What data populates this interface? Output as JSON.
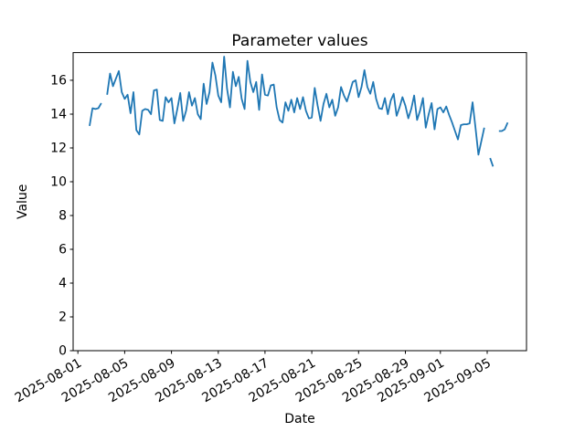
{
  "figure": {
    "background": "#ffffff",
    "aria_label": "Parameter values line chart"
  },
  "chart_data": {
    "type": "line",
    "title": "Parameter values",
    "xlabel": "Date",
    "ylabel": "Value",
    "line_color": "#1f77b4",
    "axis_color": "#000000",
    "grid": false,
    "legend": "none",
    "ylim": [
      0,
      17.64
    ],
    "yticks": [
      0,
      2,
      4,
      6,
      8,
      10,
      12,
      14,
      16
    ],
    "xlim_days_from_aug1": [
      -0.41,
      38.36
    ],
    "xticks": [
      {
        "label": "2025-08-01",
        "day": 0
      },
      {
        "label": "2025-08-05",
        "day": 4
      },
      {
        "label": "2025-08-09",
        "day": 8
      },
      {
        "label": "2025-08-13",
        "day": 12
      },
      {
        "label": "2025-08-17",
        "day": 16
      },
      {
        "label": "2025-08-21",
        "day": 20
      },
      {
        "label": "2025-08-25",
        "day": 24
      },
      {
        "label": "2025-08-29",
        "day": 28
      },
      {
        "label": "2025-09-01",
        "day": 31
      },
      {
        "label": "2025-09-05",
        "day": 35
      }
    ],
    "points": [
      [
        "2025-08-02T00:00",
        13.3
      ],
      [
        "2025-08-02T06:00",
        14.35
      ],
      [
        "2025-08-02T12:00",
        14.3
      ],
      [
        "2025-08-02T18:00",
        14.35
      ],
      [
        "2025-08-03T00:00",
        14.65
      ],
      [
        "2025-08-03T06:00",
        null
      ],
      [
        "2025-08-03T12:00",
        15.15
      ],
      [
        "2025-08-03T18:00",
        16.4
      ],
      [
        "2025-08-04T00:00",
        15.65
      ],
      [
        "2025-08-04T06:00",
        16.1
      ],
      [
        "2025-08-04T12:00",
        16.55
      ],
      [
        "2025-08-04T18:00",
        15.3
      ],
      [
        "2025-08-05T00:00",
        14.9
      ],
      [
        "2025-08-05T06:00",
        15.15
      ],
      [
        "2025-08-05T12:00",
        14.05
      ],
      [
        "2025-08-05T18:00",
        15.3
      ],
      [
        "2025-08-06T00:00",
        13.05
      ],
      [
        "2025-08-06T06:00",
        12.8
      ],
      [
        "2025-08-06T12:00",
        14.2
      ],
      [
        "2025-08-06T18:00",
        14.3
      ],
      [
        "2025-08-07T00:00",
        14.25
      ],
      [
        "2025-08-07T06:00",
        14.0
      ],
      [
        "2025-08-07T12:00",
        15.4
      ],
      [
        "2025-08-07T18:00",
        15.45
      ],
      [
        "2025-08-08T00:00",
        13.65
      ],
      [
        "2025-08-08T06:00",
        13.6
      ],
      [
        "2025-08-08T12:00",
        15.0
      ],
      [
        "2025-08-08T18:00",
        14.7
      ],
      [
        "2025-08-09T00:00",
        14.95
      ],
      [
        "2025-08-09T06:00",
        13.45
      ],
      [
        "2025-08-09T12:00",
        14.3
      ],
      [
        "2025-08-09T18:00",
        15.25
      ],
      [
        "2025-08-10T00:00",
        13.6
      ],
      [
        "2025-08-10T06:00",
        14.2
      ],
      [
        "2025-08-10T12:00",
        15.3
      ],
      [
        "2025-08-10T18:00",
        14.5
      ],
      [
        "2025-08-11T00:00",
        14.95
      ],
      [
        "2025-08-11T06:00",
        14.0
      ],
      [
        "2025-08-11T12:00",
        13.7
      ],
      [
        "2025-08-11T18:00",
        15.8
      ],
      [
        "2025-08-12T00:00",
        14.6
      ],
      [
        "2025-08-12T06:00",
        15.3
      ],
      [
        "2025-08-12T12:00",
        17.05
      ],
      [
        "2025-08-12T18:00",
        16.3
      ],
      [
        "2025-08-13T00:00",
        15.1
      ],
      [
        "2025-08-13T06:00",
        14.7
      ],
      [
        "2025-08-13T12:00",
        17.4
      ],
      [
        "2025-08-13T18:00",
        15.5
      ],
      [
        "2025-08-14T00:00",
        14.4
      ],
      [
        "2025-08-14T06:00",
        16.5
      ],
      [
        "2025-08-14T12:00",
        15.65
      ],
      [
        "2025-08-14T18:00",
        16.2
      ],
      [
        "2025-08-15T00:00",
        14.9
      ],
      [
        "2025-08-15T06:00",
        14.3
      ],
      [
        "2025-08-15T12:00",
        17.15
      ],
      [
        "2025-08-15T18:00",
        15.9
      ],
      [
        "2025-08-16T00:00",
        15.3
      ],
      [
        "2025-08-16T06:00",
        15.9
      ],
      [
        "2025-08-16T12:00",
        14.25
      ],
      [
        "2025-08-16T18:00",
        16.35
      ],
      [
        "2025-08-17T00:00",
        15.15
      ],
      [
        "2025-08-17T06:00",
        15.1
      ],
      [
        "2025-08-17T12:00",
        15.7
      ],
      [
        "2025-08-17T18:00",
        15.75
      ],
      [
        "2025-08-18T00:00",
        14.4
      ],
      [
        "2025-08-18T06:00",
        13.65
      ],
      [
        "2025-08-18T12:00",
        13.5
      ],
      [
        "2025-08-18T18:00",
        14.7
      ],
      [
        "2025-08-19T00:00",
        14.2
      ],
      [
        "2025-08-19T06:00",
        14.85
      ],
      [
        "2025-08-19T12:00",
        14.1
      ],
      [
        "2025-08-19T18:00",
        14.95
      ],
      [
        "2025-08-20T00:00",
        14.3
      ],
      [
        "2025-08-20T06:00",
        15.0
      ],
      [
        "2025-08-20T12:00",
        14.2
      ],
      [
        "2025-08-20T18:00",
        13.75
      ],
      [
        "2025-08-21T00:00",
        13.8
      ],
      [
        "2025-08-21T06:00",
        15.55
      ],
      [
        "2025-08-21T12:00",
        14.5
      ],
      [
        "2025-08-21T18:00",
        13.6
      ],
      [
        "2025-08-22T00:00",
        14.6
      ],
      [
        "2025-08-22T06:00",
        15.2
      ],
      [
        "2025-08-22T12:00",
        14.4
      ],
      [
        "2025-08-22T18:00",
        14.85
      ],
      [
        "2025-08-23T00:00",
        13.9
      ],
      [
        "2025-08-23T06:00",
        14.4
      ],
      [
        "2025-08-23T12:00",
        15.6
      ],
      [
        "2025-08-23T18:00",
        15.1
      ],
      [
        "2025-08-24T00:00",
        14.75
      ],
      [
        "2025-08-24T06:00",
        15.3
      ],
      [
        "2025-08-24T12:00",
        15.9
      ],
      [
        "2025-08-24T18:00",
        16.0
      ],
      [
        "2025-08-25T00:00",
        15.0
      ],
      [
        "2025-08-25T06:00",
        15.6
      ],
      [
        "2025-08-25T12:00",
        16.6
      ],
      [
        "2025-08-25T18:00",
        15.6
      ],
      [
        "2025-08-26T00:00",
        15.2
      ],
      [
        "2025-08-26T06:00",
        15.9
      ],
      [
        "2025-08-26T12:00",
        14.9
      ],
      [
        "2025-08-26T18:00",
        14.35
      ],
      [
        "2025-08-27T00:00",
        14.3
      ],
      [
        "2025-08-27T06:00",
        14.95
      ],
      [
        "2025-08-27T12:00",
        14.0
      ],
      [
        "2025-08-27T18:00",
        14.8
      ],
      [
        "2025-08-28T00:00",
        15.2
      ],
      [
        "2025-08-28T06:00",
        13.9
      ],
      [
        "2025-08-28T12:00",
        14.4
      ],
      [
        "2025-08-28T18:00",
        15.0
      ],
      [
        "2025-08-29T00:00",
        14.5
      ],
      [
        "2025-08-29T06:00",
        13.75
      ],
      [
        "2025-08-29T12:00",
        14.3
      ],
      [
        "2025-08-29T18:00",
        15.1
      ],
      [
        "2025-08-30T00:00",
        13.65
      ],
      [
        "2025-08-30T06:00",
        14.2
      ],
      [
        "2025-08-30T12:00",
        14.95
      ],
      [
        "2025-08-30T18:00",
        13.2
      ],
      [
        "2025-08-31T00:00",
        14.0
      ],
      [
        "2025-08-31T06:00",
        14.65
      ],
      [
        "2025-08-31T12:00",
        13.1
      ],
      [
        "2025-08-31T18:00",
        14.3
      ],
      [
        "2025-09-01T00:00",
        14.4
      ],
      [
        "2025-09-01T06:00",
        14.1
      ],
      [
        "2025-09-01T12:00",
        14.45
      ],
      [
        "2025-09-01T18:00",
        13.95
      ],
      [
        "2025-09-02T00:00",
        13.5
      ],
      [
        "2025-09-02T06:00",
        13.0
      ],
      [
        "2025-09-02T12:00",
        12.5
      ],
      [
        "2025-09-02T18:00",
        13.35
      ],
      [
        "2025-09-03T00:00",
        13.4
      ],
      [
        "2025-09-03T06:00",
        13.4
      ],
      [
        "2025-09-03T12:00",
        13.45
      ],
      [
        "2025-09-03T18:00",
        14.7
      ],
      [
        "2025-09-04T00:00",
        13.2
      ],
      [
        "2025-09-04T06:00",
        11.6
      ],
      [
        "2025-09-04T12:00",
        12.4
      ],
      [
        "2025-09-04T18:00",
        13.2
      ],
      [
        "2025-09-05T00:00",
        null
      ],
      [
        "2025-09-05T06:00",
        11.4
      ],
      [
        "2025-09-05T12:00",
        10.9
      ],
      [
        "2025-09-05T18:00",
        null
      ],
      [
        "2025-09-06T00:00",
        13.0
      ],
      [
        "2025-09-06T06:00",
        13.0
      ],
      [
        "2025-09-06T12:00",
        13.1
      ],
      [
        "2025-09-06T18:00",
        13.5
      ]
    ]
  }
}
